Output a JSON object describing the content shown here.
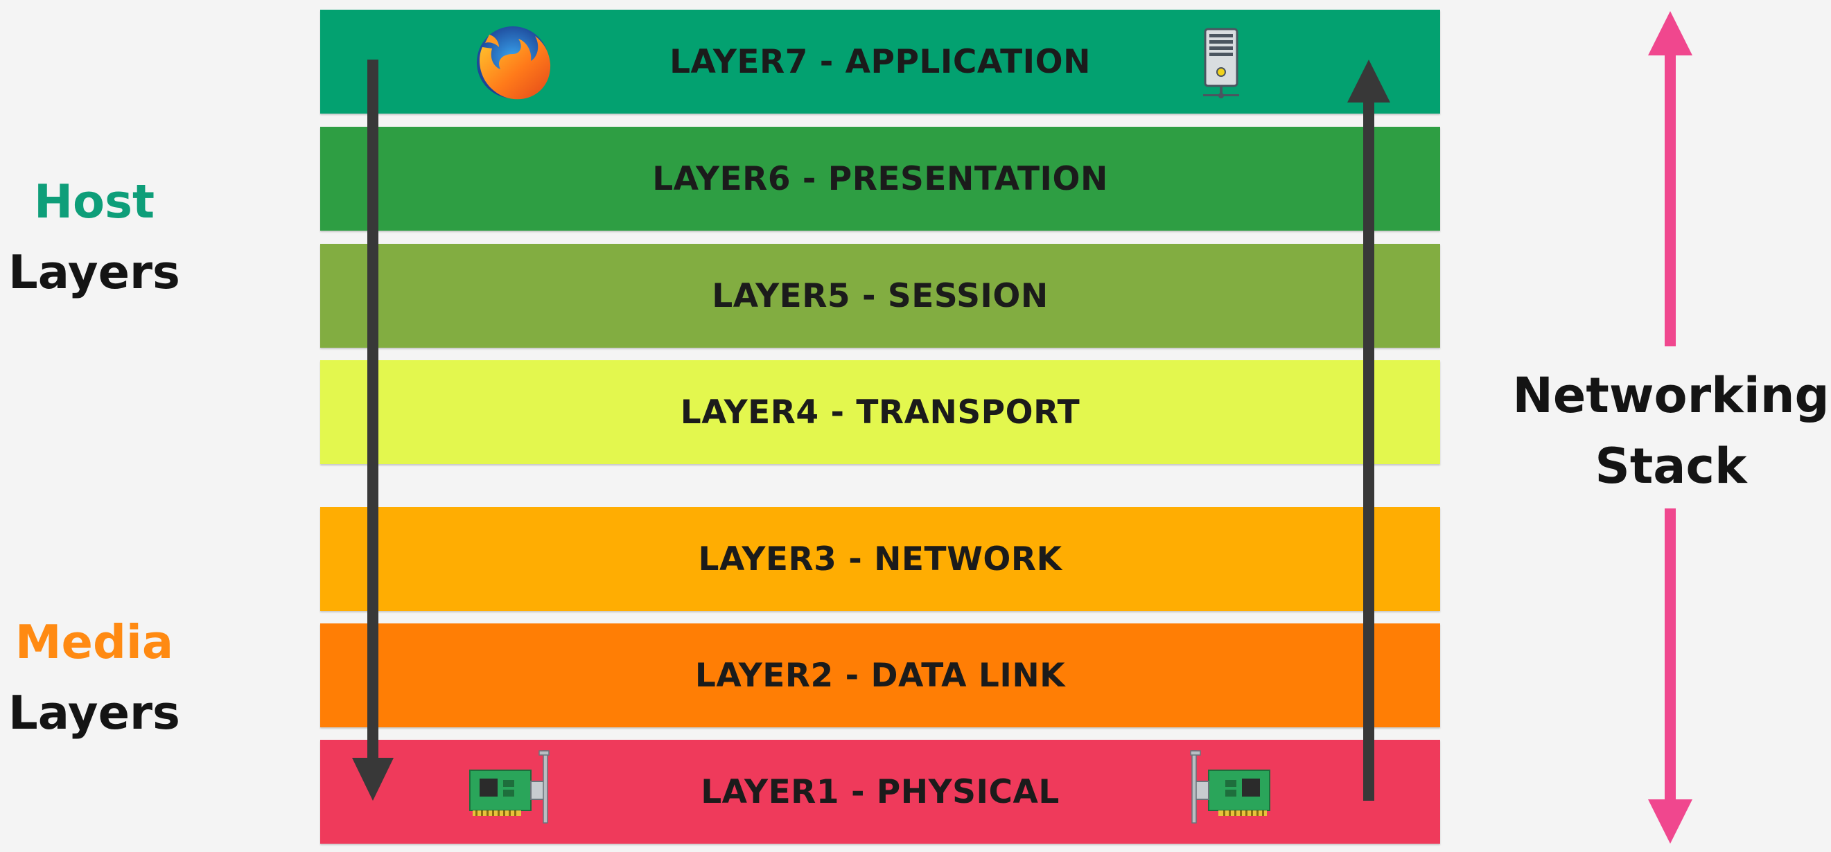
{
  "layers": [
    {
      "label": "LAYER7 - APPLICATION",
      "color": "#03a170"
    },
    {
      "label": "LAYER6 - PRESENTATION",
      "color": "#2e9e43"
    },
    {
      "label": "LAYER5 - SESSION",
      "color": "#82ad41"
    },
    {
      "label": "LAYER4 - TRANSPORT",
      "color": "#e3f74e"
    },
    {
      "label": "LAYER3 - NETWORK",
      "color": "#ffad02"
    },
    {
      "label": "LAYER2 - DATA LINK",
      "color": "#ff7e05"
    },
    {
      "label": "LAYER1 - PHYSICAL",
      "color": "#ef3a5b"
    }
  ],
  "host_group": {
    "line1": "Host",
    "line2": "Layers",
    "accent": "#0e9e79"
  },
  "media_group": {
    "line1": "Media",
    "line2": "Layers",
    "accent": "#ff8a12"
  },
  "stack_label": {
    "line1": "Networking",
    "line2": "Stack"
  },
  "colors": {
    "flow_arrow": "#383838",
    "stack_arrow": "#f0478e",
    "text_dark": "#141414"
  },
  "icons": {
    "top_left": "firefox-browser-icon",
    "top_right": "server-tower-icon",
    "bottom_left": "network-card-icon",
    "bottom_right": "network-card-icon"
  }
}
